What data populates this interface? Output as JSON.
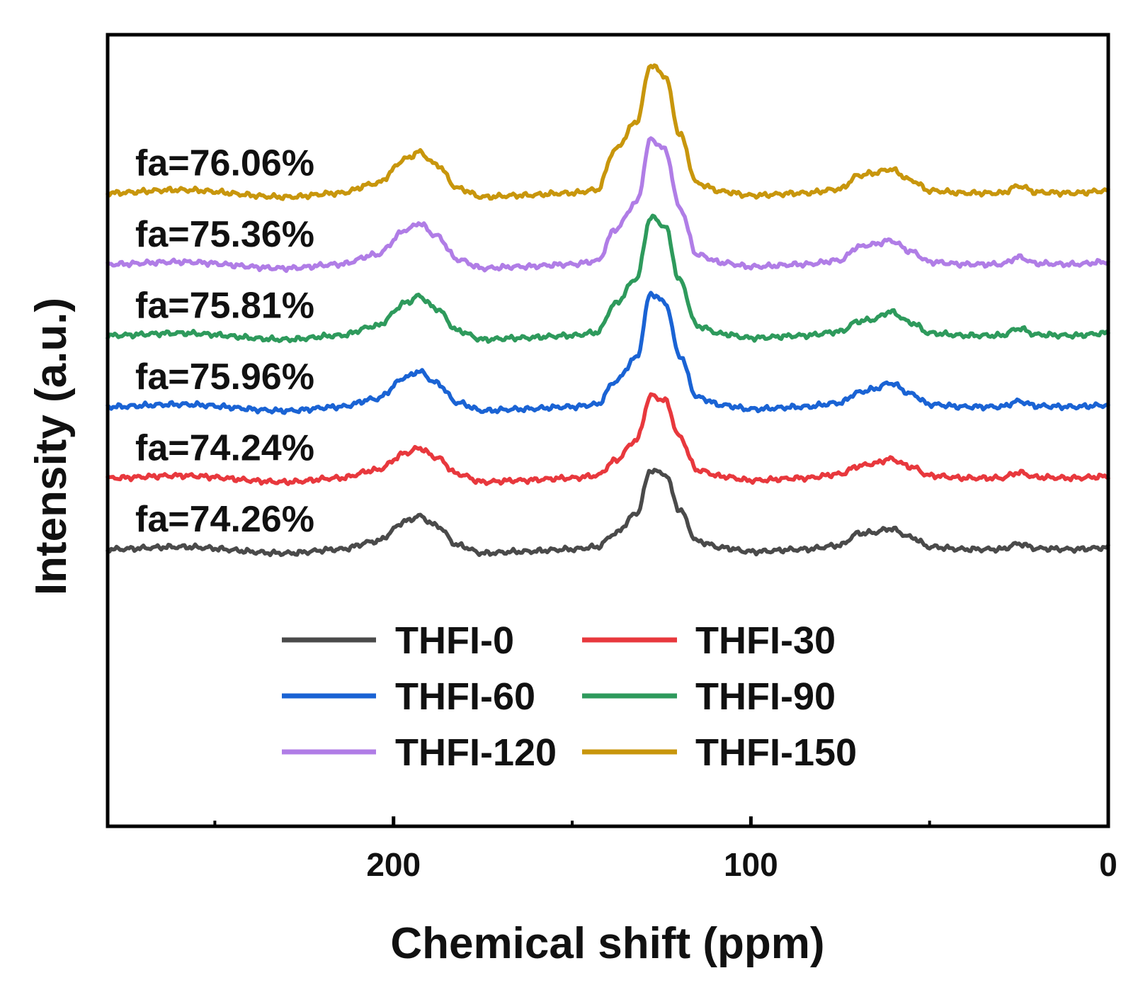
{
  "chart_data": {
    "type": "line",
    "title": "",
    "xlabel": "Chemical shift (ppm)",
    "ylabel": "Intensity (a.u.)",
    "xlim": [
      280,
      0
    ],
    "ylim": [
      0,
      10
    ],
    "x_major_ticks": [
      200,
      100,
      0
    ],
    "x_tick_labels": [
      "200",
      "100",
      "0"
    ],
    "x_minor_ticks": [
      250,
      150,
      50
    ],
    "y_ticks_shown": false,
    "legend_position": "lower-center",
    "series": [
      {
        "name": "THFI-0",
        "color": "#4a4a4a",
        "offset": 3.5,
        "annotation": "fa=74.26%",
        "points": [
          [
            280,
            0.0
          ],
          [
            260,
            0.03
          ],
          [
            230,
            -0.05
          ],
          [
            215,
            0.0
          ],
          [
            205,
            0.1
          ],
          [
            196,
            0.36
          ],
          [
            193,
            0.42
          ],
          [
            188,
            0.3
          ],
          [
            182,
            0.05
          ],
          [
            175,
            -0.05
          ],
          [
            165,
            -0.03
          ],
          [
            150,
            0.0
          ],
          [
            143,
            0.03
          ],
          [
            138,
            0.2
          ],
          [
            132,
            0.45
          ],
          [
            128,
            1.0
          ],
          [
            124,
            0.95
          ],
          [
            120,
            0.5
          ],
          [
            115,
            0.1
          ],
          [
            108,
            0.02
          ],
          [
            100,
            -0.03
          ],
          [
            85,
            0.0
          ],
          [
            75,
            0.05
          ],
          [
            70,
            0.2
          ],
          [
            66,
            0.21
          ],
          [
            61,
            0.26
          ],
          [
            55,
            0.15
          ],
          [
            50,
            0.03
          ],
          [
            40,
            0.0
          ],
          [
            30,
            0.0
          ],
          [
            25,
            0.07
          ],
          [
            20,
            0.01
          ],
          [
            10,
            0.0
          ],
          [
            0,
            0.02
          ]
        ]
      },
      {
        "name": "THFI-30",
        "color": "#e8383d",
        "offset": 4.4,
        "annotation": "fa=74.24%",
        "points": [
          [
            280,
            0.0
          ],
          [
            260,
            0.03
          ],
          [
            230,
            -0.05
          ],
          [
            215,
            0.0
          ],
          [
            205,
            0.1
          ],
          [
            196,
            0.32
          ],
          [
            193,
            0.38
          ],
          [
            188,
            0.26
          ],
          [
            182,
            0.05
          ],
          [
            175,
            -0.05
          ],
          [
            165,
            -0.03
          ],
          [
            150,
            0.0
          ],
          [
            143,
            0.03
          ],
          [
            138,
            0.22
          ],
          [
            132,
            0.48
          ],
          [
            128,
            1.04
          ],
          [
            124,
            0.98
          ],
          [
            120,
            0.52
          ],
          [
            115,
            0.1
          ],
          [
            108,
            0.02
          ],
          [
            100,
            -0.03
          ],
          [
            85,
            0.0
          ],
          [
            75,
            0.05
          ],
          [
            70,
            0.15
          ],
          [
            66,
            0.18
          ],
          [
            61,
            0.24
          ],
          [
            55,
            0.14
          ],
          [
            50,
            0.03
          ],
          [
            40,
            0.0
          ],
          [
            30,
            0.0
          ],
          [
            25,
            0.07
          ],
          [
            20,
            0.01
          ],
          [
            10,
            0.0
          ],
          [
            0,
            0.02
          ]
        ]
      },
      {
        "name": "THFI-60",
        "color": "#1a63d4",
        "offset": 5.3,
        "annotation": "fa=75.96%",
        "points": [
          [
            280,
            0.0
          ],
          [
            260,
            0.03
          ],
          [
            230,
            -0.05
          ],
          [
            215,
            0.0
          ],
          [
            205,
            0.1
          ],
          [
            196,
            0.38
          ],
          [
            193,
            0.45
          ],
          [
            188,
            0.3
          ],
          [
            182,
            0.05
          ],
          [
            175,
            -0.05
          ],
          [
            165,
            -0.03
          ],
          [
            150,
            0.0
          ],
          [
            143,
            0.03
          ],
          [
            138,
            0.32
          ],
          [
            132,
            0.62
          ],
          [
            128,
            1.43
          ],
          [
            124,
            1.32
          ],
          [
            120,
            0.65
          ],
          [
            115,
            0.12
          ],
          [
            108,
            0.02
          ],
          [
            100,
            -0.03
          ],
          [
            85,
            0.0
          ],
          [
            75,
            0.05
          ],
          [
            70,
            0.18
          ],
          [
            66,
            0.22
          ],
          [
            61,
            0.3
          ],
          [
            55,
            0.16
          ],
          [
            50,
            0.03
          ],
          [
            40,
            0.0
          ],
          [
            30,
            0.0
          ],
          [
            25,
            0.07
          ],
          [
            20,
            0.01
          ],
          [
            10,
            0.0
          ],
          [
            0,
            0.02
          ]
        ]
      },
      {
        "name": "THFI-90",
        "color": "#2e9a5c",
        "offset": 6.2,
        "annotation": "fa=75.81%",
        "points": [
          [
            280,
            0.0
          ],
          [
            260,
            0.03
          ],
          [
            230,
            -0.05
          ],
          [
            215,
            0.0
          ],
          [
            205,
            0.12
          ],
          [
            196,
            0.42
          ],
          [
            193,
            0.5
          ],
          [
            188,
            0.34
          ],
          [
            182,
            0.06
          ],
          [
            175,
            -0.05
          ],
          [
            165,
            -0.03
          ],
          [
            150,
            0.0
          ],
          [
            143,
            0.04
          ],
          [
            138,
            0.4
          ],
          [
            132,
            0.72
          ],
          [
            128,
            1.5
          ],
          [
            124,
            1.38
          ],
          [
            120,
            0.7
          ],
          [
            115,
            0.12
          ],
          [
            108,
            0.02
          ],
          [
            100,
            -0.03
          ],
          [
            85,
            0.0
          ],
          [
            75,
            0.05
          ],
          [
            70,
            0.18
          ],
          [
            66,
            0.2
          ],
          [
            61,
            0.3
          ],
          [
            55,
            0.16
          ],
          [
            50,
            0.03
          ],
          [
            40,
            0.0
          ],
          [
            30,
            0.0
          ],
          [
            25,
            0.09
          ],
          [
            20,
            0.01
          ],
          [
            10,
            0.0
          ],
          [
            0,
            0.03
          ]
        ]
      },
      {
        "name": "THFI-120",
        "color": "#b07de6",
        "offset": 7.1,
        "annotation": "fa=75.36%",
        "points": [
          [
            280,
            0.0
          ],
          [
            260,
            0.03
          ],
          [
            230,
            -0.05
          ],
          [
            215,
            0.0
          ],
          [
            205,
            0.12
          ],
          [
            196,
            0.44
          ],
          [
            193,
            0.52
          ],
          [
            188,
            0.36
          ],
          [
            182,
            0.06
          ],
          [
            175,
            -0.05
          ],
          [
            165,
            -0.03
          ],
          [
            150,
            0.0
          ],
          [
            143,
            0.04
          ],
          [
            138,
            0.44
          ],
          [
            132,
            0.78
          ],
          [
            128,
            1.58
          ],
          [
            124,
            1.45
          ],
          [
            120,
            0.72
          ],
          [
            115,
            0.12
          ],
          [
            108,
            0.02
          ],
          [
            100,
            -0.03
          ],
          [
            85,
            0.0
          ],
          [
            75,
            0.05
          ],
          [
            70,
            0.22
          ],
          [
            66,
            0.25
          ],
          [
            61,
            0.3
          ],
          [
            55,
            0.16
          ],
          [
            50,
            0.03
          ],
          [
            40,
            0.0
          ],
          [
            30,
            0.0
          ],
          [
            25,
            0.09
          ],
          [
            20,
            0.01
          ],
          [
            10,
            0.0
          ],
          [
            0,
            0.03
          ]
        ]
      },
      {
        "name": "THFI-150",
        "color": "#c8960c",
        "offset": 8.0,
        "annotation": "fa=76.06%",
        "points": [
          [
            280,
            0.0
          ],
          [
            260,
            0.04
          ],
          [
            230,
            -0.05
          ],
          [
            215,
            0.0
          ],
          [
            205,
            0.12
          ],
          [
            196,
            0.44
          ],
          [
            193,
            0.52
          ],
          [
            188,
            0.36
          ],
          [
            182,
            0.06
          ],
          [
            175,
            -0.05
          ],
          [
            165,
            -0.03
          ],
          [
            150,
            0.0
          ],
          [
            143,
            0.04
          ],
          [
            138,
            0.55
          ],
          [
            132,
            0.9
          ],
          [
            128,
            1.62
          ],
          [
            124,
            1.48
          ],
          [
            120,
            0.75
          ],
          [
            115,
            0.12
          ],
          [
            108,
            0.02
          ],
          [
            100,
            -0.03
          ],
          [
            85,
            0.0
          ],
          [
            75,
            0.05
          ],
          [
            70,
            0.22
          ],
          [
            66,
            0.25
          ],
          [
            61,
            0.3
          ],
          [
            55,
            0.16
          ],
          [
            50,
            0.03
          ],
          [
            40,
            0.0
          ],
          [
            30,
            0.0
          ],
          [
            25,
            0.09
          ],
          [
            20,
            0.01
          ],
          [
            10,
            0.0
          ],
          [
            0,
            0.03
          ]
        ]
      }
    ]
  }
}
